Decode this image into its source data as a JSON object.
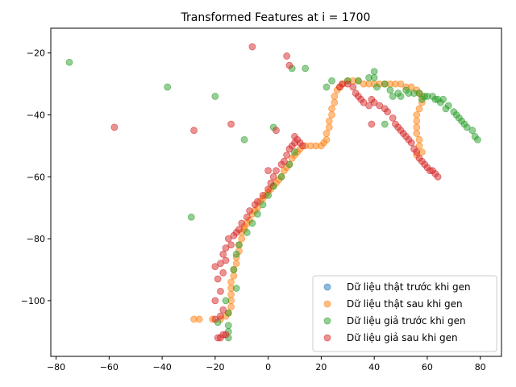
{
  "chart_data": {
    "type": "scatter",
    "title": "Transformed Features at i = 1700",
    "xlabel": "",
    "ylabel": "",
    "xlim": [
      -82,
      88
    ],
    "ylim": [
      -118,
      -12
    ],
    "x_ticks": [
      -80,
      -60,
      -40,
      -20,
      0,
      20,
      40,
      60,
      80
    ],
    "y_ticks": [
      -20,
      -40,
      -60,
      -80,
      -100
    ],
    "grid": false,
    "legend_position": "lower-right",
    "series": [
      {
        "name": "Dữ liệu thật trước khi gen",
        "color": "#1f77b4",
        "points": []
      },
      {
        "name": "Dữ liệu thật sau khi gen",
        "color": "#ff7f0e",
        "points": [
          [
            -28,
            -106
          ],
          [
            -26,
            -106
          ],
          [
            -21,
            -106
          ],
          [
            -18,
            -106
          ],
          [
            -16,
            -105
          ],
          [
            -15,
            -104
          ],
          [
            -14,
            -102
          ],
          [
            -14,
            -100
          ],
          [
            -14,
            -98
          ],
          [
            -14,
            -96
          ],
          [
            -14,
            -94
          ],
          [
            -13,
            -92
          ],
          [
            -13,
            -90
          ],
          [
            -12,
            -88
          ],
          [
            -12,
            -86
          ],
          [
            -11,
            -84
          ],
          [
            -11,
            -82
          ],
          [
            -10,
            -80
          ],
          [
            -10,
            -78
          ],
          [
            -9,
            -77
          ],
          [
            -9,
            -76
          ],
          [
            -8,
            -75
          ],
          [
            -7,
            -74
          ],
          [
            -6,
            -72
          ],
          [
            -5,
            -71
          ],
          [
            -4,
            -70
          ],
          [
            -3,
            -68
          ],
          [
            -2,
            -67
          ],
          [
            -1,
            -66
          ],
          [
            0,
            -65
          ],
          [
            1,
            -64
          ],
          [
            2,
            -63
          ],
          [
            3,
            -62
          ],
          [
            4,
            -61
          ],
          [
            5,
            -60
          ],
          [
            6,
            -58
          ],
          [
            7,
            -57
          ],
          [
            8,
            -56
          ],
          [
            9,
            -54
          ],
          [
            10,
            -53
          ],
          [
            11,
            -52
          ],
          [
            12,
            -51
          ],
          [
            14,
            -50
          ],
          [
            16,
            -50
          ],
          [
            18,
            -50
          ],
          [
            20,
            -50
          ],
          [
            21,
            -49
          ],
          [
            22,
            -48
          ],
          [
            22,
            -46
          ],
          [
            23,
            -44
          ],
          [
            23,
            -42
          ],
          [
            24,
            -40
          ],
          [
            24,
            -38
          ],
          [
            25,
            -36
          ],
          [
            25,
            -34
          ],
          [
            26,
            -32
          ],
          [
            27,
            -31
          ],
          [
            28,
            -30
          ],
          [
            30,
            -29
          ],
          [
            32,
            -29
          ],
          [
            34,
            -29
          ],
          [
            36,
            -30
          ],
          [
            38,
            -30
          ],
          [
            40,
            -30
          ],
          [
            42,
            -30
          ],
          [
            44,
            -30
          ],
          [
            46,
            -30
          ],
          [
            48,
            -30
          ],
          [
            50,
            -30
          ],
          [
            52,
            -31
          ],
          [
            54,
            -31
          ],
          [
            56,
            -32
          ],
          [
            57,
            -33
          ],
          [
            58,
            -34
          ],
          [
            58,
            -36
          ],
          [
            57,
            -38
          ],
          [
            56,
            -40
          ],
          [
            56,
            -42
          ],
          [
            56,
            -44
          ],
          [
            56,
            -46
          ],
          [
            57,
            -48
          ],
          [
            57,
            -50
          ],
          [
            58,
            -52
          ],
          [
            56,
            -53
          ]
        ]
      },
      {
        "name": "Dữ liệu giả trước khi gen",
        "color": "#2ca02c",
        "points": [
          [
            -75,
            -23
          ],
          [
            -38,
            -31
          ],
          [
            -20,
            -34
          ],
          [
            -29,
            -73
          ],
          [
            -9,
            -48
          ],
          [
            2,
            -44
          ],
          [
            9,
            -25
          ],
          [
            14,
            -25
          ],
          [
            -16,
            -100
          ],
          [
            -15,
            -104
          ],
          [
            -19,
            -107
          ],
          [
            -15,
            -108
          ],
          [
            -15,
            -110
          ],
          [
            -15,
            -112
          ],
          [
            -12,
            -96
          ],
          [
            -13,
            -90
          ],
          [
            -12,
            -85
          ],
          [
            -11,
            -82
          ],
          [
            -8,
            -78
          ],
          [
            -6,
            -75
          ],
          [
            -4,
            -72
          ],
          [
            -2,
            -69
          ],
          [
            0,
            -66
          ],
          [
            2,
            -63
          ],
          [
            5,
            -60
          ],
          [
            8,
            -56
          ],
          [
            10,
            -52
          ],
          [
            22,
            -31
          ],
          [
            24,
            -29
          ],
          [
            30,
            -29
          ],
          [
            34,
            -29
          ],
          [
            38,
            -28
          ],
          [
            40,
            -28
          ],
          [
            40,
            -26
          ],
          [
            41,
            -31
          ],
          [
            44,
            -30
          ],
          [
            44,
            -43
          ],
          [
            46,
            -32
          ],
          [
            47,
            -34
          ],
          [
            49,
            -33
          ],
          [
            50,
            -34
          ],
          [
            52,
            -32
          ],
          [
            53,
            -33
          ],
          [
            55,
            -33
          ],
          [
            57,
            -33
          ],
          [
            58,
            -35
          ],
          [
            59,
            -34
          ],
          [
            60,
            -34
          ],
          [
            62,
            -34
          ],
          [
            63,
            -35
          ],
          [
            64,
            -35
          ],
          [
            65,
            -36
          ],
          [
            66,
            -35
          ],
          [
            67,
            -38
          ],
          [
            68,
            -37
          ],
          [
            70,
            -39
          ],
          [
            71,
            -40
          ],
          [
            72,
            -41
          ],
          [
            73,
            -42
          ],
          [
            74,
            -43
          ],
          [
            75,
            -44
          ],
          [
            77,
            -45
          ],
          [
            78,
            -47
          ],
          [
            79,
            -48
          ]
        ]
      },
      {
        "name": "Dữ liệu giả sau khi gen",
        "color": "#d62728",
        "points": [
          [
            -6,
            -18
          ],
          [
            7,
            -21
          ],
          [
            8,
            -24
          ],
          [
            -58,
            -44
          ],
          [
            -28,
            -45
          ],
          [
            -14,
            -43
          ],
          [
            3,
            -45
          ],
          [
            -19,
            -112
          ],
          [
            -18,
            -112
          ],
          [
            -17,
            -111
          ],
          [
            -16,
            -111
          ],
          [
            -20,
            -106
          ],
          [
            -18,
            -105
          ],
          [
            -17,
            -103
          ],
          [
            -20,
            -100
          ],
          [
            -18,
            -97
          ],
          [
            -19,
            -93
          ],
          [
            -17,
            -91
          ],
          [
            -20,
            -89
          ],
          [
            -18,
            -88
          ],
          [
            -16,
            -87
          ],
          [
            -17,
            -85
          ],
          [
            -16,
            -83
          ],
          [
            -14,
            -82
          ],
          [
            -15,
            -80
          ],
          [
            -13,
            -79
          ],
          [
            -12,
            -78
          ],
          [
            -11,
            -77
          ],
          [
            -10,
            -75
          ],
          [
            -8,
            -73
          ],
          [
            -7,
            -71
          ],
          [
            -5,
            -69
          ],
          [
            -4,
            -68
          ],
          [
            -2,
            -66
          ],
          [
            0,
            -64
          ],
          [
            1,
            -62
          ],
          [
            2,
            -60
          ],
          [
            0,
            -58
          ],
          [
            3,
            -58
          ],
          [
            5,
            -56
          ],
          [
            6,
            -55
          ],
          [
            7,
            -53
          ],
          [
            8,
            -51
          ],
          [
            9,
            -50
          ],
          [
            10,
            -49
          ],
          [
            10,
            -47
          ],
          [
            11,
            -48
          ],
          [
            12,
            -49
          ],
          [
            13,
            -50
          ],
          [
            27,
            -31
          ],
          [
            28,
            -30
          ],
          [
            30,
            -30
          ],
          [
            32,
            -31
          ],
          [
            33,
            -33
          ],
          [
            34,
            -34
          ],
          [
            35,
            -35
          ],
          [
            36,
            -36
          ],
          [
            38,
            -37
          ],
          [
            39,
            -35
          ],
          [
            40,
            -36
          ],
          [
            42,
            -37
          ],
          [
            44,
            -38
          ],
          [
            45,
            -39
          ],
          [
            47,
            -41
          ],
          [
            48,
            -43
          ],
          [
            49,
            -44
          ],
          [
            50,
            -45
          ],
          [
            51,
            -46
          ],
          [
            52,
            -47
          ],
          [
            53,
            -48
          ],
          [
            54,
            -49
          ],
          [
            55,
            -51
          ],
          [
            56,
            -52
          ],
          [
            57,
            -54
          ],
          [
            58,
            -55
          ],
          [
            59,
            -56
          ],
          [
            60,
            -57
          ],
          [
            61,
            -58
          ],
          [
            62,
            -58
          ],
          [
            63,
            -59
          ],
          [
            64,
            -60
          ],
          [
            39,
            -43
          ]
        ]
      }
    ]
  }
}
